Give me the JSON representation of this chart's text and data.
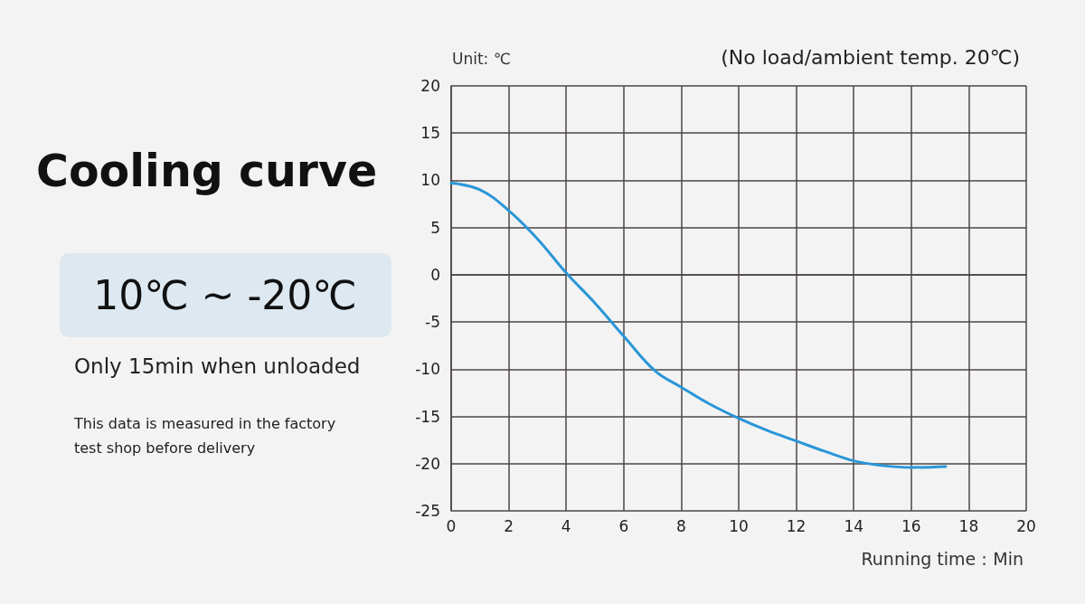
{
  "chart_data": {
    "type": "line",
    "title": "Cooling curve",
    "subtitle": "(No load/ambient temp. 20℃)",
    "xlabel": "Running time：Min",
    "ylabel": "Unit: ℃",
    "annotations": [
      "10℃ ~ -20℃",
      "Only 15min when unloaded",
      "This data is measured in the factory test shop before delivery"
    ],
    "series": [
      {
        "color": "#2a96d8",
        "x": [
          0,
          1,
          2,
          3,
          4,
          5,
          6,
          7.1,
          8,
          9,
          10,
          11,
          12,
          13,
          14,
          15,
          16,
          17.2
        ],
        "values": [
          9.7,
          9,
          6.8,
          3.8,
          0.2,
          -3,
          -6.5,
          -10.2,
          -11.9,
          -13.7,
          -15.2,
          -16.5,
          -17.6,
          -18.7,
          -19.7,
          -20.2,
          -20.4,
          -20.3
        ]
      }
    ],
    "xlim": [
      0,
      20
    ],
    "xticks": [
      0,
      2,
      4,
      6,
      8,
      10,
      12,
      14,
      16,
      18,
      20
    ],
    "ylim": [
      -25,
      20
    ],
    "yticks": [
      -25,
      -20,
      -15,
      -10,
      -5,
      0,
      5,
      10,
      15,
      20
    ],
    "grid": true,
    "marker": "none",
    "line_style": "solid"
  }
}
